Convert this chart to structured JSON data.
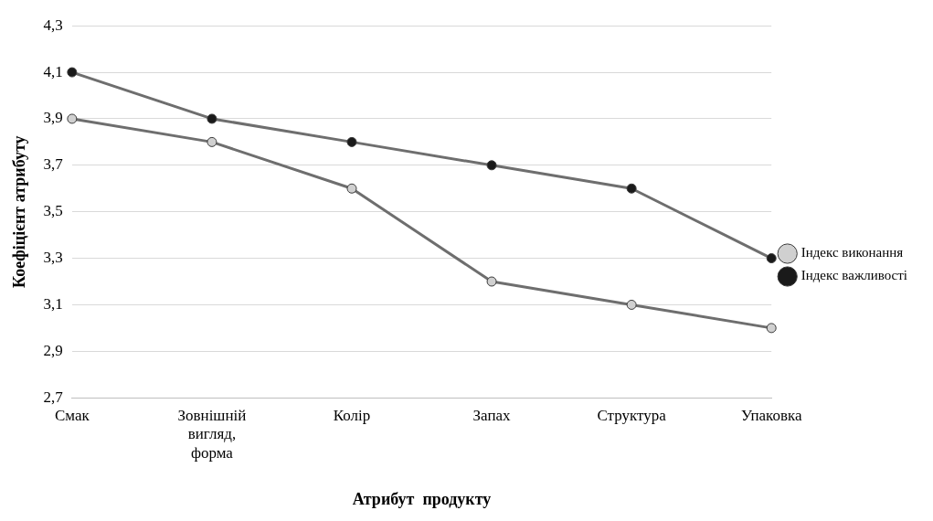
{
  "chart_data": {
    "type": "line",
    "xlabel": "Атрибут  продукту",
    "ylabel": "Коефіцієнт атрибуту",
    "categories": [
      "Смак",
      "Зовнішній вигляд, форма",
      "Колір",
      "Запах",
      "Структура",
      "Упаковка"
    ],
    "series": [
      {
        "name": "Індекс виконання",
        "color": "#6e6e6e",
        "colors": [
          "#d0d0d0",
          "#d0d0d0",
          "#d0d0d0",
          "#d0d0d0",
          "#d0d0d0",
          "#d0d0d0"
        ],
        "values": [
          3.9,
          3.8,
          3.6,
          3.2,
          3.1,
          3.0
        ]
      },
      {
        "name": "Індекс важливості",
        "color": "#6e6e6e",
        "colors": [
          "#1a1a1a",
          "#1a1a1a",
          "#1a1a1a",
          "#1a1a1a",
          "#1a1a1a",
          "#1a1a1a"
        ],
        "values": [
          4.1,
          3.9,
          3.8,
          3.7,
          3.6,
          3.3
        ]
      }
    ],
    "ylim": [
      2.7,
      4.3
    ],
    "yticks": [
      {
        "value": 2.7,
        "label": "2,7"
      },
      {
        "value": 2.9,
        "label": "2,9"
      },
      {
        "value": 3.1,
        "label": "3,1"
      },
      {
        "value": 3.3,
        "label": "3,3"
      },
      {
        "value": 3.5,
        "label": "3,5"
      },
      {
        "value": 3.7,
        "label": "3,7"
      },
      {
        "value": 3.9,
        "label": "3,9"
      },
      {
        "value": 4.1,
        "label": "4,1"
      },
      {
        "value": 4.3,
        "label": "4,3"
      }
    ],
    "grid": "y",
    "legend": "right",
    "marker": "circle",
    "line_style": "solid"
  }
}
